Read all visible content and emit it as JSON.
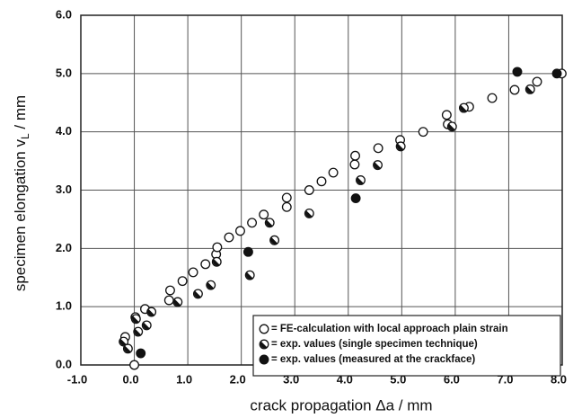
{
  "chart_data": {
    "type": "scatter",
    "xlabel": "crack propagation Δa / mm",
    "ylabel": {
      "text": "specimen elongation v",
      "subscript": "L",
      "suffix": " / mm"
    },
    "xlim": [
      -1,
      8
    ],
    "ylim": [
      0,
      6
    ],
    "xticks": [
      {
        "value": -1,
        "label": "-1.0"
      },
      {
        "value": 0,
        "label": "0.0"
      },
      {
        "value": 1,
        "label": "1.0"
      },
      {
        "value": 2,
        "label": "2.0"
      },
      {
        "value": 3,
        "label": "3.0"
      },
      {
        "value": 4,
        "label": "4.0"
      },
      {
        "value": 5,
        "label": "5.0"
      },
      {
        "value": 6,
        "label": "6.0"
      },
      {
        "value": 7,
        "label": "7.0"
      },
      {
        "value": 8,
        "label": "8.0"
      }
    ],
    "yticks": [
      {
        "value": 0,
        "label": "0.0"
      },
      {
        "value": 1,
        "label": "1.0"
      },
      {
        "value": 2,
        "label": "2.0"
      },
      {
        "value": 3,
        "label": "3.0"
      },
      {
        "value": 4,
        "label": "4.0"
      },
      {
        "value": 5,
        "label": "5.0"
      },
      {
        "value": 6,
        "label": "6.0"
      }
    ],
    "grid": true,
    "legend": "lower right",
    "series": [
      {
        "name": "= FE-calculation with local approach plain strain",
        "marker": "open",
        "color": "#111111",
        "x": [
          0.0,
          -0.17,
          0.02,
          0.2,
          0.65,
          0.67,
          0.9,
          1.1,
          1.33,
          1.53,
          1.55,
          1.77,
          1.98,
          2.2,
          2.42,
          2.85,
          2.85,
          3.27,
          3.5,
          3.72,
          4.13,
          4.12,
          4.56,
          4.97,
          5.4,
          5.84,
          5.86,
          6.26,
          6.69,
          7.11,
          7.53,
          7.99
        ],
        "values": [
          0.0,
          0.48,
          0.82,
          0.96,
          1.11,
          1.28,
          1.44,
          1.59,
          1.73,
          1.9,
          2.02,
          2.19,
          2.3,
          2.44,
          2.58,
          2.87,
          2.71,
          3.0,
          3.15,
          3.3,
          3.59,
          3.44,
          3.72,
          3.86,
          4.0,
          4.29,
          4.13,
          4.43,
          4.58,
          4.72,
          4.86,
          5.0
        ]
      },
      {
        "name": "= exp. values (single specimen technique)",
        "marker": "half",
        "color": "#111111",
        "x": [
          -0.2,
          -0.12,
          0.03,
          0.07,
          0.23,
          0.32,
          0.81,
          1.19,
          1.43,
          1.54,
          2.16,
          2.53,
          2.62,
          3.27,
          4.23,
          4.55,
          4.98,
          5.94,
          6.16,
          7.4
        ],
        "values": [
          0.4,
          0.28,
          0.79,
          0.57,
          0.68,
          0.91,
          1.08,
          1.22,
          1.37,
          1.77,
          1.54,
          2.44,
          2.14,
          2.6,
          3.17,
          3.43,
          3.75,
          4.09,
          4.41,
          4.73
        ]
      },
      {
        "name": "= exp. values (measured at the crackface)",
        "marker": "filled",
        "color": "#111111",
        "x": [
          0.12,
          2.13,
          4.14,
          7.16,
          7.9
        ],
        "values": [
          0.2,
          1.94,
          2.86,
          5.03,
          5.0
        ]
      }
    ]
  }
}
